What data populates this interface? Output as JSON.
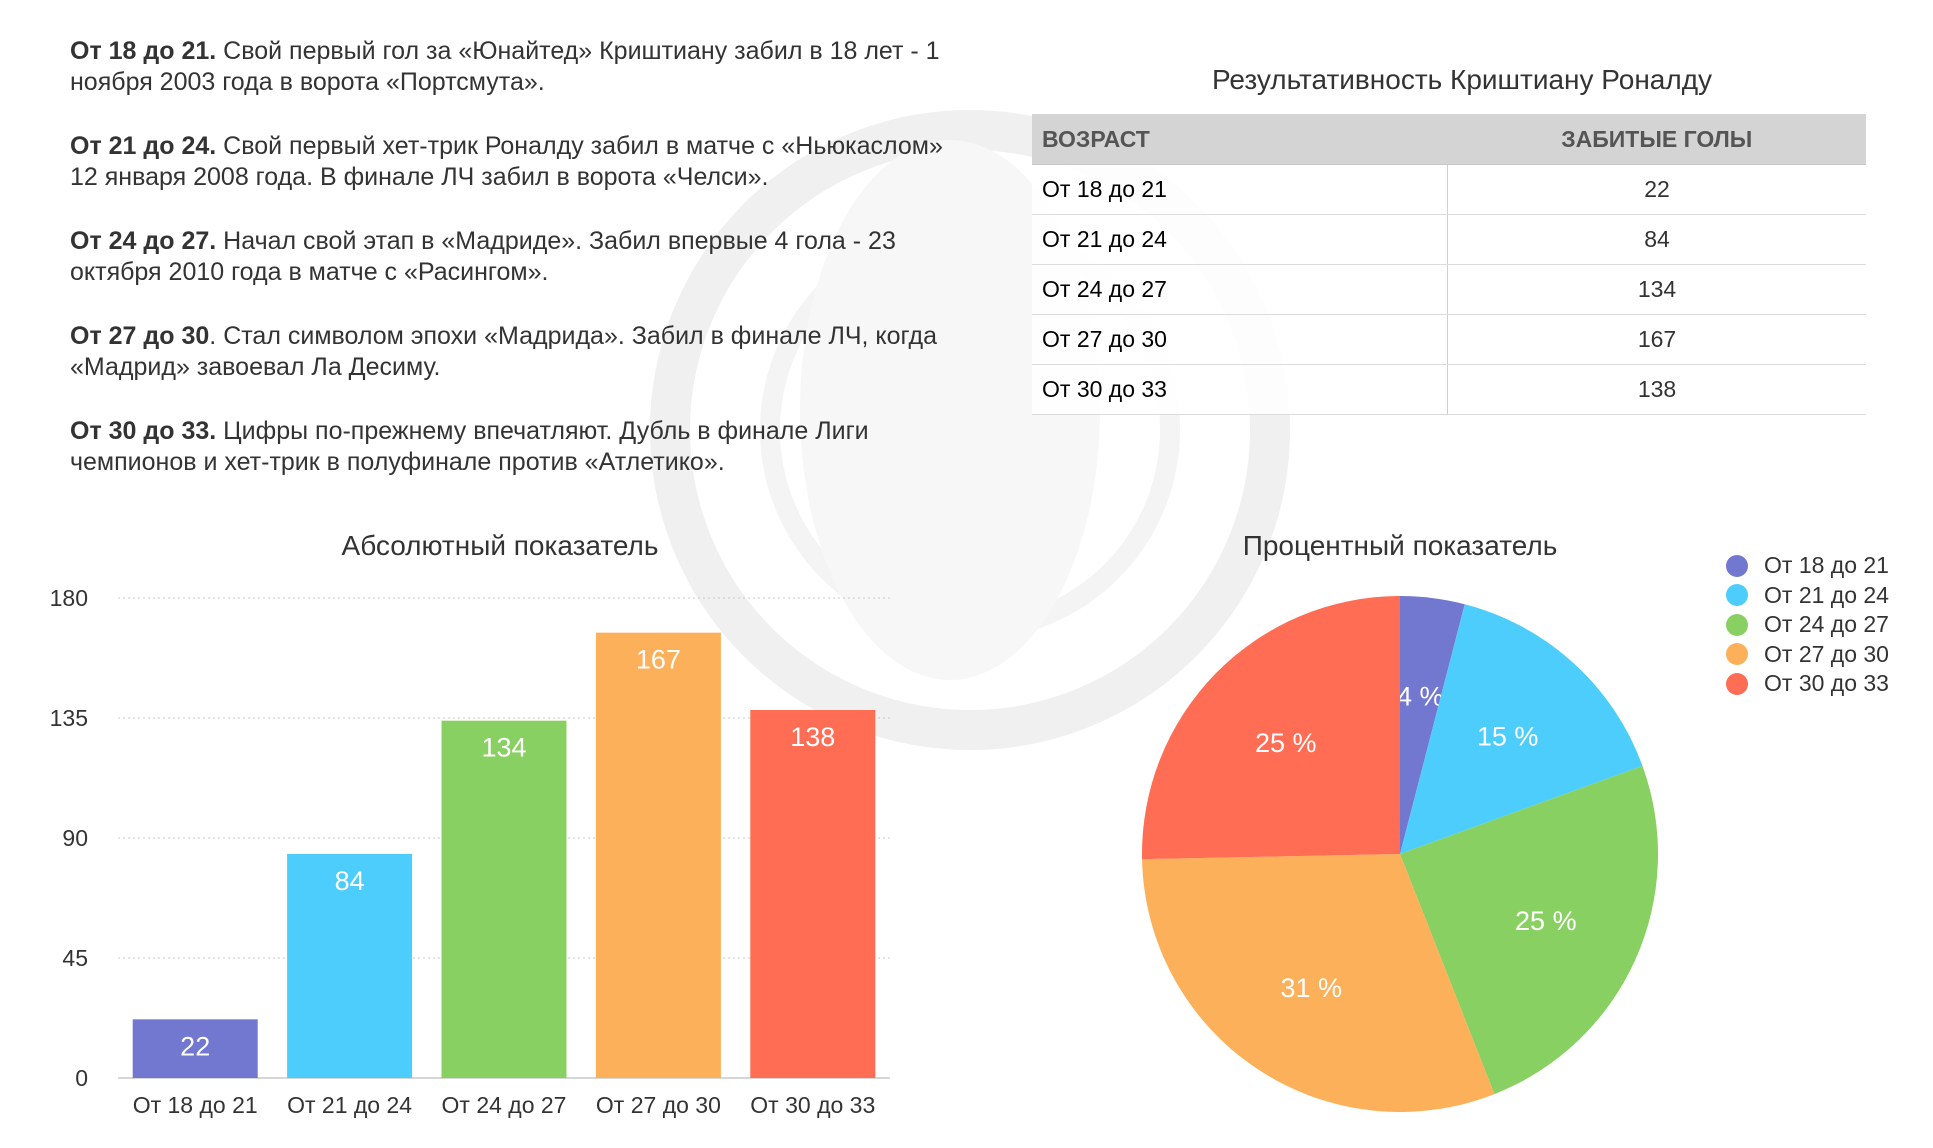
{
  "story": [
    {
      "lead": "От 18 до 21.",
      "text": " Свой первый гол за «Юнайтед» Криштиану забил в 18 лет - 1 ноября 2003 года в ворота «Портсмута»."
    },
    {
      "lead": "От 21 до 24.",
      "text": " Свой первый хет-трик Роналду забил в матче с «Ньюкаслом» 12 января 2008 года. В финале ЛЧ забил в ворота «Челси»."
    },
    {
      "lead": "От 24 до 27.",
      "text": " Начал свой этап в «Мадриде». Забил впервые 4 гола - 23 октября 2010 года в матче с «Расингом»."
    },
    {
      "lead": "От 27 до 30",
      "text": ". Стал символом эпохи «Мадрида». Забил в финале ЛЧ, когда «Мадрид» завоевал Ла Десиму."
    },
    {
      "lead": "От 30 до 33.",
      "text": " Цифры по-прежнему впечатляют. Дубль в финале Лиги чемпионов и хет-трик в полуфинале против «Атлетико»."
    }
  ],
  "table": {
    "title": "Результативность Криштиану Роналду",
    "headers": [
      "ВОЗРАСТ",
      "ЗАБИТЫЕ ГОЛЫ"
    ],
    "rows": [
      [
        "От 18 до 21",
        "22"
      ],
      [
        "От 21 до 24",
        "84"
      ],
      [
        "От 24 до 27",
        "134"
      ],
      [
        "От 27 до 30",
        "167"
      ],
      [
        "От 30 до 33",
        "138"
      ]
    ]
  },
  "colors": [
    "#7277cf",
    "#4dcdfb",
    "#89d062",
    "#fdb05a",
    "#fe6d54"
  ],
  "chart_data": [
    {
      "type": "bar",
      "title": "Абсолютный показатель",
      "categories": [
        "От 18 до 21",
        "От 21 до 24",
        "От 24 до 27",
        "От 27 до 30",
        "От 30 до 33"
      ],
      "values": [
        22,
        84,
        134,
        167,
        138
      ],
      "yticks": [
        0,
        45,
        90,
        135,
        180
      ],
      "ylim": [
        0,
        180
      ],
      "xlabel": "",
      "ylabel": "",
      "grid": true
    },
    {
      "type": "pie",
      "title": "Процентный показатель",
      "labels": [
        "От 18 до 21",
        "От 21 до 24",
        "От 24 до 27",
        "От 27 до 30",
        "От 30 до 33"
      ],
      "values": [
        22,
        84,
        134,
        167,
        138
      ],
      "percent_labels": [
        "4 %",
        "15 %",
        "25 %",
        "31 %",
        "25 %"
      ],
      "legend": "right"
    }
  ]
}
